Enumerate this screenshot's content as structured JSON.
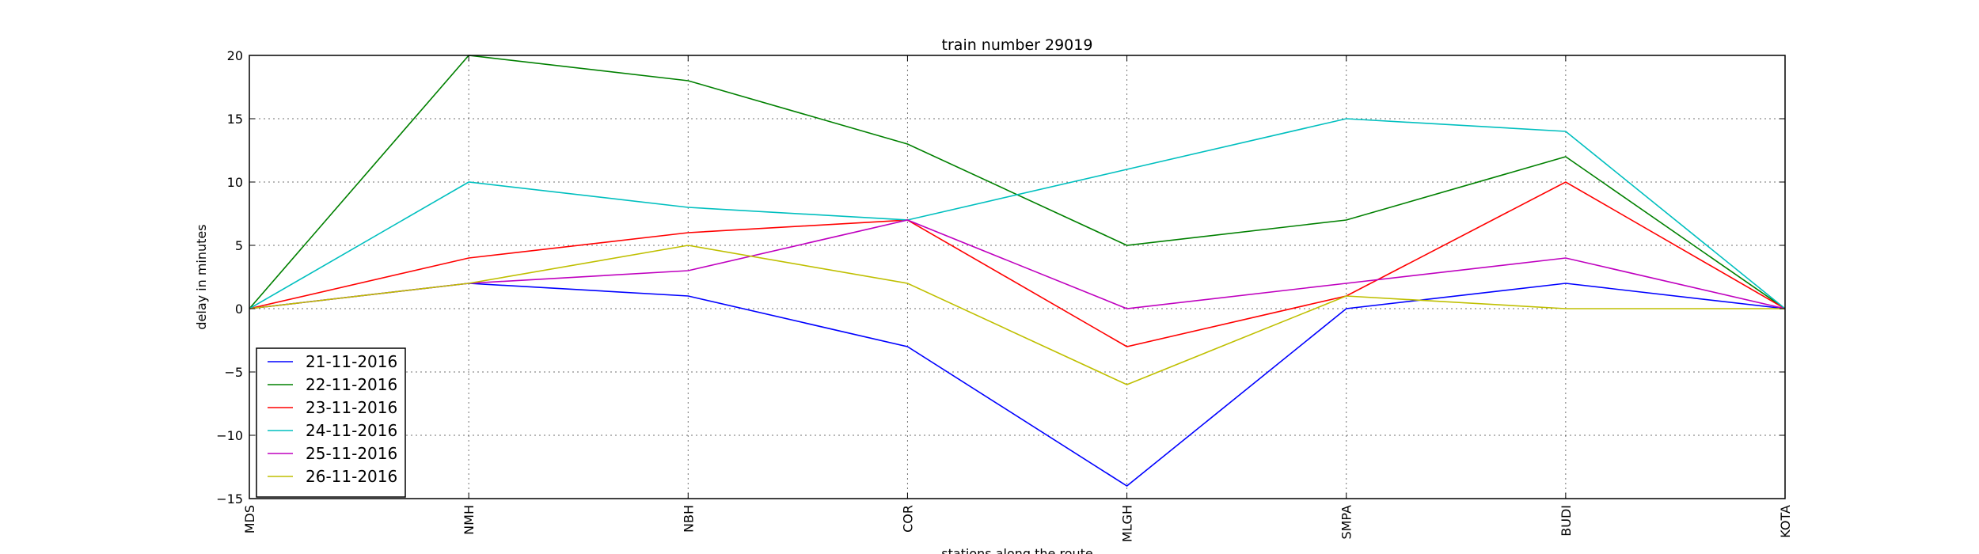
{
  "chart_data": {
    "type": "line",
    "title": "train number 29019",
    "xlabel": "stations along the route",
    "ylabel": "delay in minutes",
    "categories": [
      "MDS",
      "NMH",
      "NBH",
      "COR",
      "MLGH",
      "SMPA",
      "BUDI",
      "KOTA"
    ],
    "ylim": [
      -15,
      20
    ],
    "yticks": [
      -15,
      -10,
      -5,
      0,
      5,
      10,
      15,
      20
    ],
    "ytick_labels": [
      "−15",
      "−10",
      "−5",
      "0",
      "5",
      "10",
      "15",
      "20"
    ],
    "grid": true,
    "legend_position": "lower-left",
    "series": [
      {
        "name": "21-11-2016",
        "color": "#0000ff",
        "values": [
          0,
          2,
          1,
          -3,
          -14,
          0,
          2,
          0
        ]
      },
      {
        "name": "22-11-2016",
        "color": "#008000",
        "values": [
          0,
          20,
          18,
          13,
          5,
          7,
          12,
          0
        ]
      },
      {
        "name": "23-11-2016",
        "color": "#ff0000",
        "values": [
          0,
          4,
          6,
          7,
          -3,
          1,
          10,
          0
        ]
      },
      {
        "name": "24-11-2016",
        "color": "#00bfbf",
        "values": [
          0,
          10,
          8,
          7,
          11,
          15,
          14,
          0
        ]
      },
      {
        "name": "25-11-2016",
        "color": "#bf00bf",
        "values": [
          0,
          2,
          3,
          7,
          0,
          2,
          4,
          0
        ]
      },
      {
        "name": "26-11-2016",
        "color": "#bfbf00",
        "values": [
          0,
          2,
          5,
          2,
          -6,
          1,
          0,
          0
        ]
      }
    ]
  }
}
